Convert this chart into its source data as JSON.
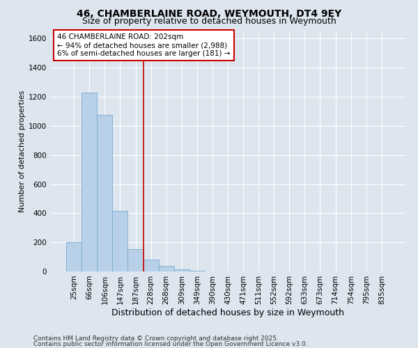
{
  "title": "46, CHAMBERLAINE ROAD, WEYMOUTH, DT4 9EY",
  "subtitle": "Size of property relative to detached houses in Weymouth",
  "xlabel": "Distribution of detached houses by size in Weymouth",
  "ylabel": "Number of detached properties",
  "categories": [
    "25sqm",
    "66sqm",
    "106sqm",
    "147sqm",
    "187sqm",
    "228sqm",
    "268sqm",
    "309sqm",
    "349sqm",
    "390sqm",
    "430sqm",
    "471sqm",
    "511sqm",
    "552sqm",
    "592sqm",
    "633sqm",
    "673sqm",
    "714sqm",
    "754sqm",
    "795sqm",
    "835sqm"
  ],
  "values": [
    200,
    1230,
    1075,
    415,
    155,
    80,
    40,
    15,
    5,
    2,
    1,
    0,
    0,
    0,
    0,
    0,
    0,
    0,
    0,
    0,
    0
  ],
  "bar_color": "#b8d0e8",
  "bar_edge_color": "#7aaad0",
  "vline_x_index": 4.5,
  "vline_color": "#cc0000",
  "annotation_text": "46 CHAMBERLAINE ROAD: 202sqm\n← 94% of detached houses are smaller (2,988)\n6% of semi-detached houses are larger (181) →",
  "annotation_box_color": "#ffffff",
  "annotation_box_edge_color": "#cc0000",
  "ylim": [
    0,
    1650
  ],
  "yticks": [
    0,
    200,
    400,
    600,
    800,
    1000,
    1200,
    1400,
    1600
  ],
  "footnote1": "Contains HM Land Registry data © Crown copyright and database right 2025.",
  "footnote2": "Contains public sector information licensed under the Open Government Licence v3.0.",
  "background_color": "#dde5ef",
  "plot_background_color": "#dde5ef",
  "grid_color": "#ffffff",
  "title_fontsize": 10,
  "subtitle_fontsize": 9,
  "xlabel_fontsize": 9,
  "ylabel_fontsize": 8,
  "tick_fontsize": 7.5,
  "annotation_fontsize": 7.5,
  "footnote_fontsize": 6.5
}
